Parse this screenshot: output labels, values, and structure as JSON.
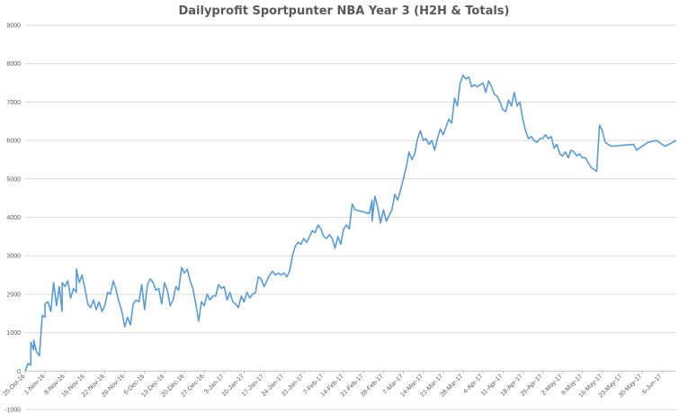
{
  "chart_data": {
    "type": "line",
    "title": "Dailyprofit Sportpunter NBA Year 3 (H2H & Totals)",
    "xlabel": "",
    "ylabel": "",
    "ylim": [
      -1000,
      9000
    ],
    "yticks": [
      -1000,
      0,
      1000,
      2000,
      3000,
      4000,
      5000,
      6000,
      7000,
      8000,
      9000
    ],
    "grid": true,
    "legend": "none",
    "line_color": "#5b9bd5",
    "xlim": [
      "2016-10-25",
      "2017-06-11"
    ],
    "xtick_labels": [
      {
        "date": "2016-10-25",
        "label": "25-Oct-16"
      },
      {
        "date": "2016-11-01",
        "label": "1-Nov-16"
      },
      {
        "date": "2016-11-08",
        "label": "8-Nov-16"
      },
      {
        "date": "2016-11-15",
        "label": "15-Nov-16"
      },
      {
        "date": "2016-11-22",
        "label": "22-Nov-16"
      },
      {
        "date": "2016-11-29",
        "label": "29-Nov-16"
      },
      {
        "date": "2016-12-06",
        "label": "6-Dec-16"
      },
      {
        "date": "2016-12-13",
        "label": "13-Dec-16"
      },
      {
        "date": "2016-12-20",
        "label": "20-Dec-16"
      },
      {
        "date": "2016-12-27",
        "label": "27-Dec-16"
      },
      {
        "date": "2017-01-03",
        "label": "3-Jan-17"
      },
      {
        "date": "2017-01-10",
        "label": "10-Jan-17"
      },
      {
        "date": "2017-01-17",
        "label": "17-Jan-17"
      },
      {
        "date": "2017-01-24",
        "label": "24-Jan-17"
      },
      {
        "date": "2017-01-31",
        "label": "31-Jan-17"
      },
      {
        "date": "2017-02-07",
        "label": "7-Feb-17"
      },
      {
        "date": "2017-02-14",
        "label": "14-Feb-17"
      },
      {
        "date": "2017-02-21",
        "label": "21-Feb-17"
      },
      {
        "date": "2017-02-28",
        "label": "28-Feb-17"
      },
      {
        "date": "2017-03-07",
        "label": "7-Mar-17"
      },
      {
        "date": "2017-03-14",
        "label": "14-Mar-17"
      },
      {
        "date": "2017-03-21",
        "label": "21-Mar-17"
      },
      {
        "date": "2017-03-28",
        "label": "28-Mar-17"
      },
      {
        "date": "2017-04-04",
        "label": "4-Apr-17"
      },
      {
        "date": "2017-04-11",
        "label": "11-Apr-17"
      },
      {
        "date": "2017-04-18",
        "label": "18-Apr-17"
      },
      {
        "date": "2017-04-25",
        "label": "25-Apr-17"
      },
      {
        "date": "2017-05-02",
        "label": "2-May-17"
      },
      {
        "date": "2017-05-09",
        "label": "9-May-17"
      },
      {
        "date": "2017-05-16",
        "label": "16-May-17"
      },
      {
        "date": "2017-05-23",
        "label": "23-May-17"
      },
      {
        "date": "2017-05-30",
        "label": "30-May-17"
      },
      {
        "date": "2017-06-06",
        "label": "6-Jun-17"
      }
    ],
    "series": [
      {
        "values": [
          [
            "2016-10-25",
            0
          ],
          [
            "2016-10-26",
            200
          ],
          [
            "2016-10-27",
            150
          ],
          [
            "2016-10-27",
            750
          ],
          [
            "2016-10-28",
            550
          ],
          [
            "2016-10-28",
            800
          ],
          [
            "2016-10-29",
            500
          ],
          [
            "2016-10-30",
            400
          ],
          [
            "2016-10-31",
            1450
          ],
          [
            "2016-11-01",
            1400
          ],
          [
            "2016-11-01",
            1750
          ],
          [
            "2016-11-02",
            1800
          ],
          [
            "2016-11-03",
            1550
          ],
          [
            "2016-11-04",
            2300
          ],
          [
            "2016-11-05",
            1700
          ],
          [
            "2016-11-06",
            2200
          ],
          [
            "2016-11-07",
            1550
          ],
          [
            "2016-11-07",
            2300
          ],
          [
            "2016-11-08",
            2200
          ],
          [
            "2016-11-09",
            2350
          ],
          [
            "2016-11-10",
            1900
          ],
          [
            "2016-11-11",
            2150
          ],
          [
            "2016-11-12",
            2050
          ],
          [
            "2016-11-12",
            2650
          ],
          [
            "2016-11-13",
            2300
          ],
          [
            "2016-11-14",
            2500
          ],
          [
            "2016-11-15",
            2150
          ],
          [
            "2016-11-16",
            1750
          ],
          [
            "2016-11-17",
            1650
          ],
          [
            "2016-11-18",
            1850
          ],
          [
            "2016-11-19",
            1600
          ],
          [
            "2016-11-20",
            1800
          ],
          [
            "2016-11-21",
            1550
          ],
          [
            "2016-11-22",
            1700
          ],
          [
            "2016-11-23",
            2050
          ],
          [
            "2016-11-24",
            2000
          ],
          [
            "2016-11-25",
            2350
          ],
          [
            "2016-11-26",
            2100
          ],
          [
            "2016-11-27",
            1800
          ],
          [
            "2016-11-28",
            1550
          ],
          [
            "2016-11-29",
            1150
          ],
          [
            "2016-11-30",
            1400
          ],
          [
            "2016-12-01",
            1200
          ],
          [
            "2016-12-02",
            1750
          ],
          [
            "2016-12-03",
            1850
          ],
          [
            "2016-12-04",
            1800
          ],
          [
            "2016-12-05",
            2250
          ],
          [
            "2016-12-06",
            1600
          ],
          [
            "2016-12-07",
            2250
          ],
          [
            "2016-12-08",
            2400
          ],
          [
            "2016-12-09",
            2300
          ],
          [
            "2016-12-10",
            2100
          ],
          [
            "2016-12-11",
            2150
          ],
          [
            "2016-12-12",
            1750
          ],
          [
            "2016-12-13",
            2300
          ],
          [
            "2016-12-14",
            2100
          ],
          [
            "2016-12-15",
            1700
          ],
          [
            "2016-12-16",
            1850
          ],
          [
            "2016-12-17",
            2200
          ],
          [
            "2016-12-18",
            2100
          ],
          [
            "2016-12-19",
            2700
          ],
          [
            "2016-12-20",
            2550
          ],
          [
            "2016-12-21",
            2650
          ],
          [
            "2016-12-22",
            2350
          ],
          [
            "2016-12-23",
            2150
          ],
          [
            "2016-12-24",
            1750
          ],
          [
            "2016-12-25",
            1300
          ],
          [
            "2016-12-26",
            1800
          ],
          [
            "2016-12-27",
            1700
          ],
          [
            "2016-12-28",
            2000
          ],
          [
            "2016-12-29",
            1850
          ],
          [
            "2016-12-30",
            1950
          ],
          [
            "2016-12-31",
            1950
          ],
          [
            "2017-01-01",
            2250
          ],
          [
            "2017-01-02",
            2150
          ],
          [
            "2017-01-03",
            2200
          ],
          [
            "2017-01-04",
            1850
          ],
          [
            "2017-01-05",
            2050
          ],
          [
            "2017-01-06",
            1800
          ],
          [
            "2017-01-07",
            1750
          ],
          [
            "2017-01-08",
            1650
          ],
          [
            "2017-01-09",
            1950
          ],
          [
            "2017-01-10",
            1800
          ],
          [
            "2017-01-11",
            2050
          ],
          [
            "2017-01-12",
            1900
          ],
          [
            "2017-01-13",
            2000
          ],
          [
            "2017-01-14",
            2050
          ],
          [
            "2017-01-15",
            2450
          ],
          [
            "2017-01-16",
            2400
          ],
          [
            "2017-01-17",
            2200
          ],
          [
            "2017-01-18",
            2350
          ],
          [
            "2017-01-19",
            2500
          ],
          [
            "2017-01-20",
            2600
          ],
          [
            "2017-01-21",
            2500
          ],
          [
            "2017-01-22",
            2550
          ],
          [
            "2017-01-23",
            2500
          ],
          [
            "2017-01-24",
            2550
          ],
          [
            "2017-01-25",
            2450
          ],
          [
            "2017-01-26",
            2600
          ],
          [
            "2017-01-27",
            3000
          ],
          [
            "2017-01-28",
            3250
          ],
          [
            "2017-01-29",
            3350
          ],
          [
            "2017-01-30",
            3300
          ],
          [
            "2017-01-31",
            3450
          ],
          [
            "2017-02-01",
            3350
          ],
          [
            "2017-02-02",
            3500
          ],
          [
            "2017-02-03",
            3650
          ],
          [
            "2017-02-04",
            3600
          ],
          [
            "2017-02-05",
            3800
          ],
          [
            "2017-02-06",
            3700
          ],
          [
            "2017-02-07",
            3500
          ],
          [
            "2017-02-08",
            3450
          ],
          [
            "2017-02-09",
            3550
          ],
          [
            "2017-02-10",
            3450
          ],
          [
            "2017-02-11",
            3200
          ],
          [
            "2017-02-12",
            3500
          ],
          [
            "2017-02-13",
            3300
          ],
          [
            "2017-02-14",
            3700
          ],
          [
            "2017-02-15",
            3800
          ],
          [
            "2017-02-16",
            3700
          ],
          [
            "2017-02-17",
            4350
          ],
          [
            "2017-02-18",
            4200
          ],
          [
            "2017-02-23",
            4100
          ],
          [
            "2017-02-24",
            4450
          ],
          [
            "2017-02-24",
            3900
          ],
          [
            "2017-02-25",
            4550
          ],
          [
            "2017-02-26",
            4250
          ],
          [
            "2017-02-27",
            3850
          ],
          [
            "2017-02-28",
            4200
          ],
          [
            "2017-03-01",
            3900
          ],
          [
            "2017-03-02",
            4050
          ],
          [
            "2017-03-03",
            4200
          ],
          [
            "2017-03-04",
            4600
          ],
          [
            "2017-03-05",
            4450
          ],
          [
            "2017-03-06",
            4700
          ],
          [
            "2017-03-07",
            5000
          ],
          [
            "2017-03-08",
            5300
          ],
          [
            "2017-03-09",
            5700
          ],
          [
            "2017-03-10",
            5500
          ],
          [
            "2017-03-11",
            5650
          ],
          [
            "2017-03-12",
            6050
          ],
          [
            "2017-03-13",
            6250
          ],
          [
            "2017-03-14",
            6000
          ],
          [
            "2017-03-15",
            6050
          ],
          [
            "2017-03-16",
            5900
          ],
          [
            "2017-03-17",
            6000
          ],
          [
            "2017-03-18",
            5750
          ],
          [
            "2017-03-19",
            6050
          ],
          [
            "2017-03-20",
            6300
          ],
          [
            "2017-03-21",
            6150
          ],
          [
            "2017-03-22",
            6350
          ],
          [
            "2017-03-23",
            6550
          ],
          [
            "2017-03-24",
            6450
          ],
          [
            "2017-03-25",
            7100
          ],
          [
            "2017-03-26",
            6900
          ],
          [
            "2017-03-27",
            7500
          ],
          [
            "2017-03-28",
            7700
          ],
          [
            "2017-03-29",
            7600
          ],
          [
            "2017-03-30",
            7650
          ],
          [
            "2017-03-31",
            7400
          ],
          [
            "2017-04-01",
            7450
          ],
          [
            "2017-04-02",
            7400
          ],
          [
            "2017-04-03",
            7450
          ],
          [
            "2017-04-04",
            7500
          ],
          [
            "2017-04-05",
            7250
          ],
          [
            "2017-04-06",
            7550
          ],
          [
            "2017-04-07",
            7400
          ],
          [
            "2017-04-08",
            7200
          ],
          [
            "2017-04-09",
            7150
          ],
          [
            "2017-04-10",
            7000
          ],
          [
            "2017-04-11",
            6800
          ],
          [
            "2017-04-12",
            6750
          ],
          [
            "2017-04-13",
            7050
          ],
          [
            "2017-04-14",
            6900
          ],
          [
            "2017-04-15",
            7250
          ],
          [
            "2017-04-16",
            6900
          ],
          [
            "2017-04-17",
            7000
          ],
          [
            "2017-04-18",
            6550
          ],
          [
            "2017-04-19",
            6250
          ],
          [
            "2017-04-20",
            6050
          ],
          [
            "2017-04-21",
            6100
          ],
          [
            "2017-04-22",
            6000
          ],
          [
            "2017-04-23",
            5950
          ],
          [
            "2017-04-24",
            6050
          ],
          [
            "2017-04-25",
            6050
          ],
          [
            "2017-04-26",
            6150
          ],
          [
            "2017-04-27",
            6050
          ],
          [
            "2017-04-28",
            6100
          ],
          [
            "2017-04-29",
            5800
          ],
          [
            "2017-04-30",
            5900
          ],
          [
            "2017-05-01",
            5650
          ],
          [
            "2017-05-02",
            5600
          ],
          [
            "2017-05-03",
            5700
          ],
          [
            "2017-05-04",
            5550
          ],
          [
            "2017-05-05",
            5750
          ],
          [
            "2017-05-06",
            5700
          ],
          [
            "2017-05-07",
            5600
          ],
          [
            "2017-05-08",
            5650
          ],
          [
            "2017-05-09",
            5550
          ],
          [
            "2017-05-10",
            5550
          ],
          [
            "2017-05-12",
            5300
          ],
          [
            "2017-05-14",
            5200
          ],
          [
            "2017-05-15",
            6400
          ],
          [
            "2017-05-16",
            6250
          ],
          [
            "2017-05-17",
            5950
          ],
          [
            "2017-05-19",
            5850
          ],
          [
            "2017-05-27",
            5900
          ],
          [
            "2017-05-28",
            5750
          ],
          [
            "2017-06-01",
            5950
          ],
          [
            "2017-06-04",
            6000
          ],
          [
            "2017-06-07",
            5850
          ],
          [
            "2017-06-11",
            6000
          ]
        ]
      }
    ]
  }
}
